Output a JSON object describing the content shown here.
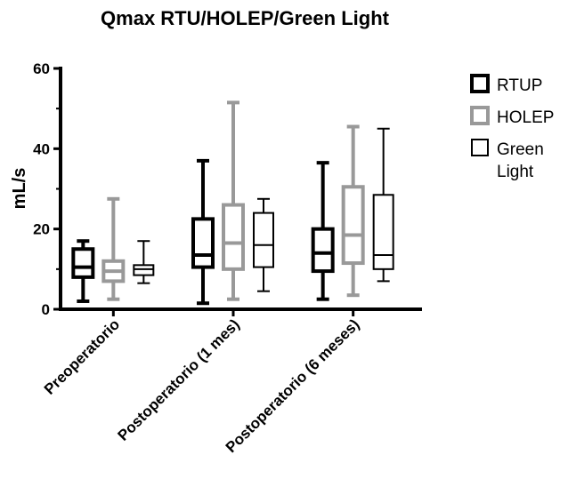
{
  "chart_data": {
    "type": "boxplot",
    "title": "Qmax RTU/HOLEP/Green Light",
    "ylabel": "mL/s",
    "xlabel": "",
    "ylim": [
      0,
      60
    ],
    "yticks": [
      0,
      20,
      40,
      60
    ],
    "grid": false,
    "legend_position": "right",
    "categories": [
      "Preoperatorio",
      "Postoperatorio (1 mes)",
      "Postoperatorio (6 meses)"
    ],
    "series": [
      {
        "name": "RTUP",
        "color": "#000000",
        "boxes": [
          {
            "min": 2,
            "q1": 8,
            "median": 10.5,
            "q3": 15,
            "max": 17
          },
          {
            "min": 1.5,
            "q1": 10.5,
            "median": 13.5,
            "q3": 22.5,
            "max": 37
          },
          {
            "min": 2.5,
            "q1": 9.5,
            "median": 14,
            "q3": 20,
            "max": 36.5
          }
        ]
      },
      {
        "name": "HOLEP",
        "color": "#999999",
        "boxes": [
          {
            "min": 2.5,
            "q1": 7,
            "median": 9.5,
            "q3": 12,
            "max": 27.5
          },
          {
            "min": 2.5,
            "q1": 10,
            "median": 16.5,
            "q3": 26,
            "max": 51.5
          },
          {
            "min": 3.5,
            "q1": 11.5,
            "median": 18.5,
            "q3": 30.5,
            "max": 45.5
          }
        ]
      },
      {
        "name": "Green Light",
        "color": "#000000",
        "boxes": [
          {
            "min": 6.5,
            "q1": 8.5,
            "median": 10,
            "q3": 11,
            "max": 17
          },
          {
            "min": 4.5,
            "q1": 10.5,
            "median": 16,
            "q3": 24,
            "max": 27.5
          },
          {
            "min": 7,
            "q1": 10,
            "median": 13.5,
            "q3": 28.5,
            "max": 45
          }
        ]
      }
    ]
  }
}
